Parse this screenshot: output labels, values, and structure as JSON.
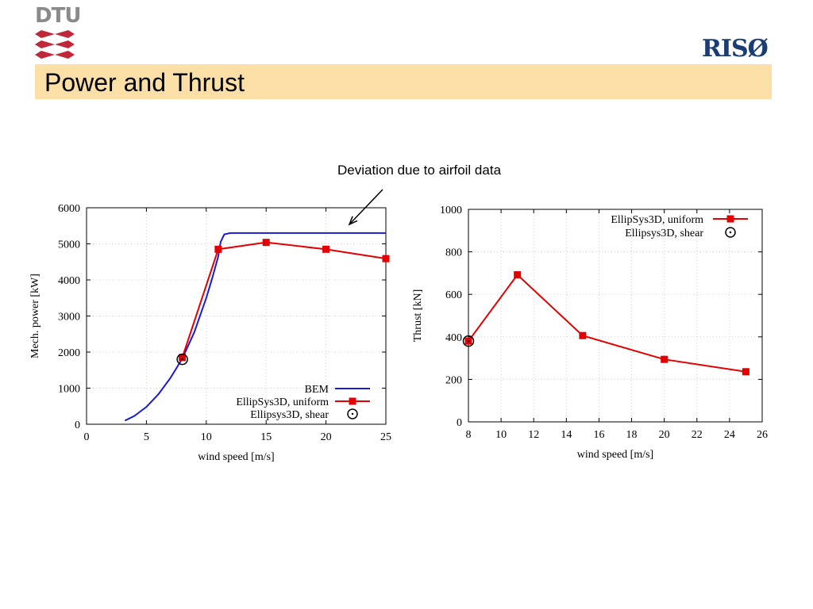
{
  "header": {
    "dtu_logo_text": "DTU",
    "riso_logo_text": "RISØ",
    "title": "Power and Thrust"
  },
  "annotation": {
    "text": "Deviation due to airfoil data"
  },
  "colors": {
    "title_bar": "#fbdfa7",
    "dtu_red": "#c0283a",
    "riso_blue": "#1c3d74",
    "bem_series": "#1a1adc",
    "ellipsys_series": "#e30000"
  },
  "chart_data": [
    {
      "type": "line",
      "xlabel": "wind speed [m/s]",
      "ylabel": "Mech. power [kW]",
      "xlim": [
        0,
        25
      ],
      "ylim": [
        0,
        6000
      ],
      "xticks": [
        0,
        5,
        10,
        15,
        20,
        25
      ],
      "yticks": [
        0,
        1000,
        2000,
        3000,
        4000,
        5000,
        6000
      ],
      "grid": true,
      "legend_position": "bottom-right",
      "series": [
        {
          "name": "BEM",
          "style": "line",
          "x": [
            3.2,
            4,
            5,
            6,
            7,
            8,
            9,
            10,
            10.5,
            11,
            11.2,
            11.5,
            12,
            13,
            15,
            18,
            20,
            22,
            25
          ],
          "y": [
            100,
            230,
            480,
            830,
            1280,
            1820,
            2550,
            3500,
            4050,
            4650,
            5050,
            5260,
            5300,
            5300,
            5300,
            5300,
            5300,
            5300,
            5300
          ]
        },
        {
          "name": "EllipSys3D, uniform",
          "style": "line-square",
          "x": [
            8,
            11,
            15,
            20,
            25
          ],
          "y": [
            1850,
            4850,
            5040,
            4850,
            4590
          ]
        },
        {
          "name": "Ellipsys3D, shear",
          "style": "circle-dot",
          "x": [
            8
          ],
          "y": [
            1800
          ]
        }
      ]
    },
    {
      "type": "line",
      "xlabel": "wind speed [m/s]",
      "ylabel": "Thrust [kN]",
      "xlim": [
        8,
        26
      ],
      "ylim": [
        0,
        1000
      ],
      "xticks": [
        8,
        10,
        12,
        14,
        16,
        18,
        20,
        22,
        24,
        26
      ],
      "yticks": [
        0,
        200,
        400,
        600,
        800,
        1000
      ],
      "grid": true,
      "legend_position": "top-right",
      "series": [
        {
          "name": "EllipSys3D, uniform",
          "style": "line-square",
          "x": [
            8,
            11,
            15,
            20,
            25
          ],
          "y": [
            380,
            692,
            406,
            294,
            236
          ]
        },
        {
          "name": "Ellipsys3D, shear",
          "style": "circle-dot",
          "x": [
            8
          ],
          "y": [
            380
          ]
        }
      ]
    }
  ]
}
